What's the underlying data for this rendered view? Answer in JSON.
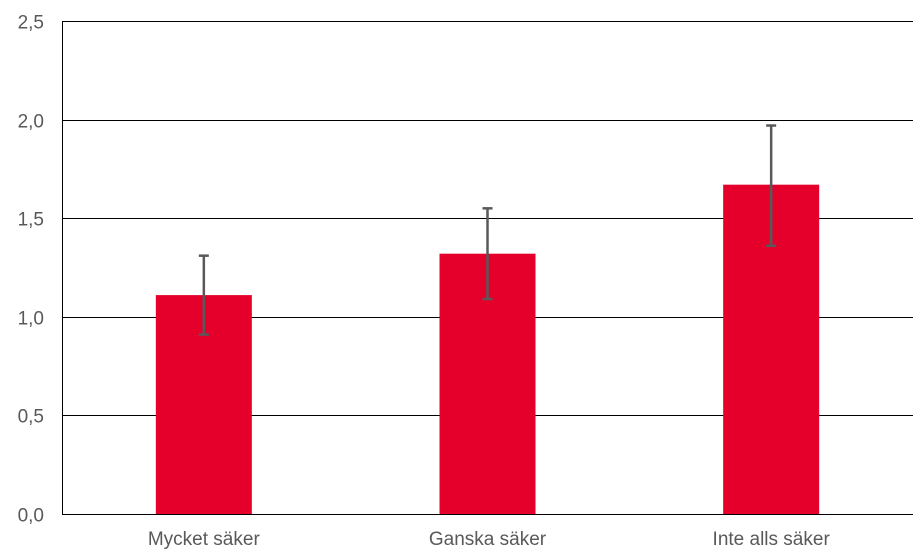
{
  "chart_data": {
    "type": "bar",
    "title": "",
    "xlabel": "",
    "ylabel": "",
    "categories": [
      "Mycket säker",
      "Ganska säker",
      "Inte alls säker"
    ],
    "values": [
      1.11,
      1.32,
      1.67
    ],
    "error_low": [
      0.91,
      1.09,
      1.36
    ],
    "error_high": [
      1.31,
      1.55,
      1.97
    ],
    "ylim": [
      0,
      2.5
    ],
    "yticks": [
      0,
      0.5,
      1.0,
      1.5,
      2.0,
      2.5
    ],
    "ytick_labels": [
      "0,0",
      "0,5",
      "1,0",
      "1,5",
      "2,0",
      "2,5"
    ],
    "grid": true,
    "legend": "none",
    "bar_color": "#E4002B",
    "error_color": "#595959"
  }
}
